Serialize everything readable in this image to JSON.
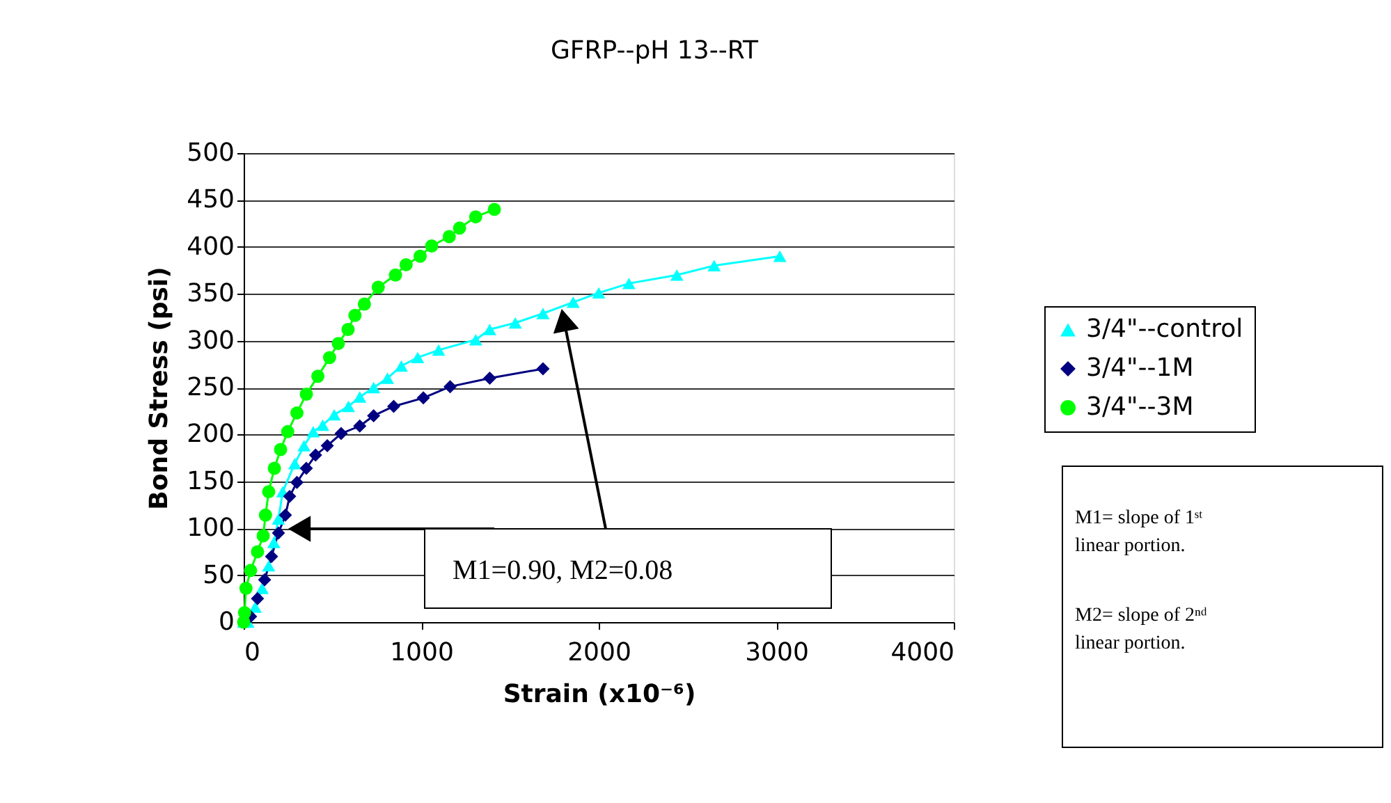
{
  "chart_data": {
    "type": "line",
    "title": "GFRP--pH 13--RT",
    "xlabel": "Strain (x10⁻⁶)",
    "ylabel": "Bond Stress (psi)",
    "xlim": [
      0,
      4000
    ],
    "xticks": [
      0,
      1000,
      2000,
      3000,
      4000
    ],
    "ylim": [
      0,
      500
    ],
    "yticks": [
      0,
      50,
      100,
      150,
      200,
      250,
      300,
      350,
      400,
      450,
      500
    ],
    "grid": "y",
    "legend": "right",
    "line_style": "solid",
    "series": [
      {
        "name": "3/4\"--control",
        "color": "#00ffff",
        "marker": "triangle",
        "x": [
          0,
          24,
          65,
          104,
          141,
          170,
          196,
          220,
          288,
          340,
          392,
          445,
          510,
          590,
          654,
          732,
          810,
          888,
          980,
          1098,
          1307,
          1386,
          1530,
          1686,
          1856,
          2000,
          2170,
          2440,
          2650,
          3020
        ],
        "values": [
          0,
          0,
          16,
          36,
          60,
          85,
          110,
          139,
          169,
          188,
          203,
          210,
          221,
          230,
          240,
          250,
          260,
          273,
          282,
          290,
          301,
          312,
          319,
          329,
          341,
          351,
          361,
          370,
          380,
          390
        ]
      },
      {
        "name": "3/4\"--1M",
        "color": "#000080",
        "marker": "diamond",
        "x": [
          0,
          39,
          78,
          118,
          157,
          196,
          235,
          259,
          300,
          353,
          405,
          471,
          549,
          654,
          732,
          845,
          1012,
          1163,
          1386,
          1686
        ],
        "values": [
          0,
          6,
          25,
          45,
          70,
          95,
          114,
          134,
          149,
          164,
          178,
          188,
          201,
          209,
          220,
          230,
          239,
          251,
          260,
          270
        ]
      },
      {
        "name": "3/4\"--3M",
        "color": "#00ff00",
        "marker": "circle",
        "x": [
          0,
          5,
          13,
          39,
          78,
          110,
          123,
          141,
          173,
          208,
          248,
          300,
          353,
          418,
          484,
          533,
          588,
          627,
          680,
          758,
          855,
          915,
          994,
          1059,
          1158,
          1216,
          1307,
          1412
        ],
        "values": [
          0,
          10,
          36,
          55,
          75,
          92,
          114,
          139,
          164,
          184,
          203,
          223,
          243,
          262,
          282,
          297,
          312,
          327,
          339,
          357,
          370,
          381,
          390,
          401,
          411,
          420,
          432,
          440
        ]
      }
    ],
    "annotations": [
      "M1=0.90, M2=0.08",
      "M1= slope of 1ˢᵗ linear portion.",
      "M2= slope of  2ⁿᵈ linear portion."
    ]
  }
}
